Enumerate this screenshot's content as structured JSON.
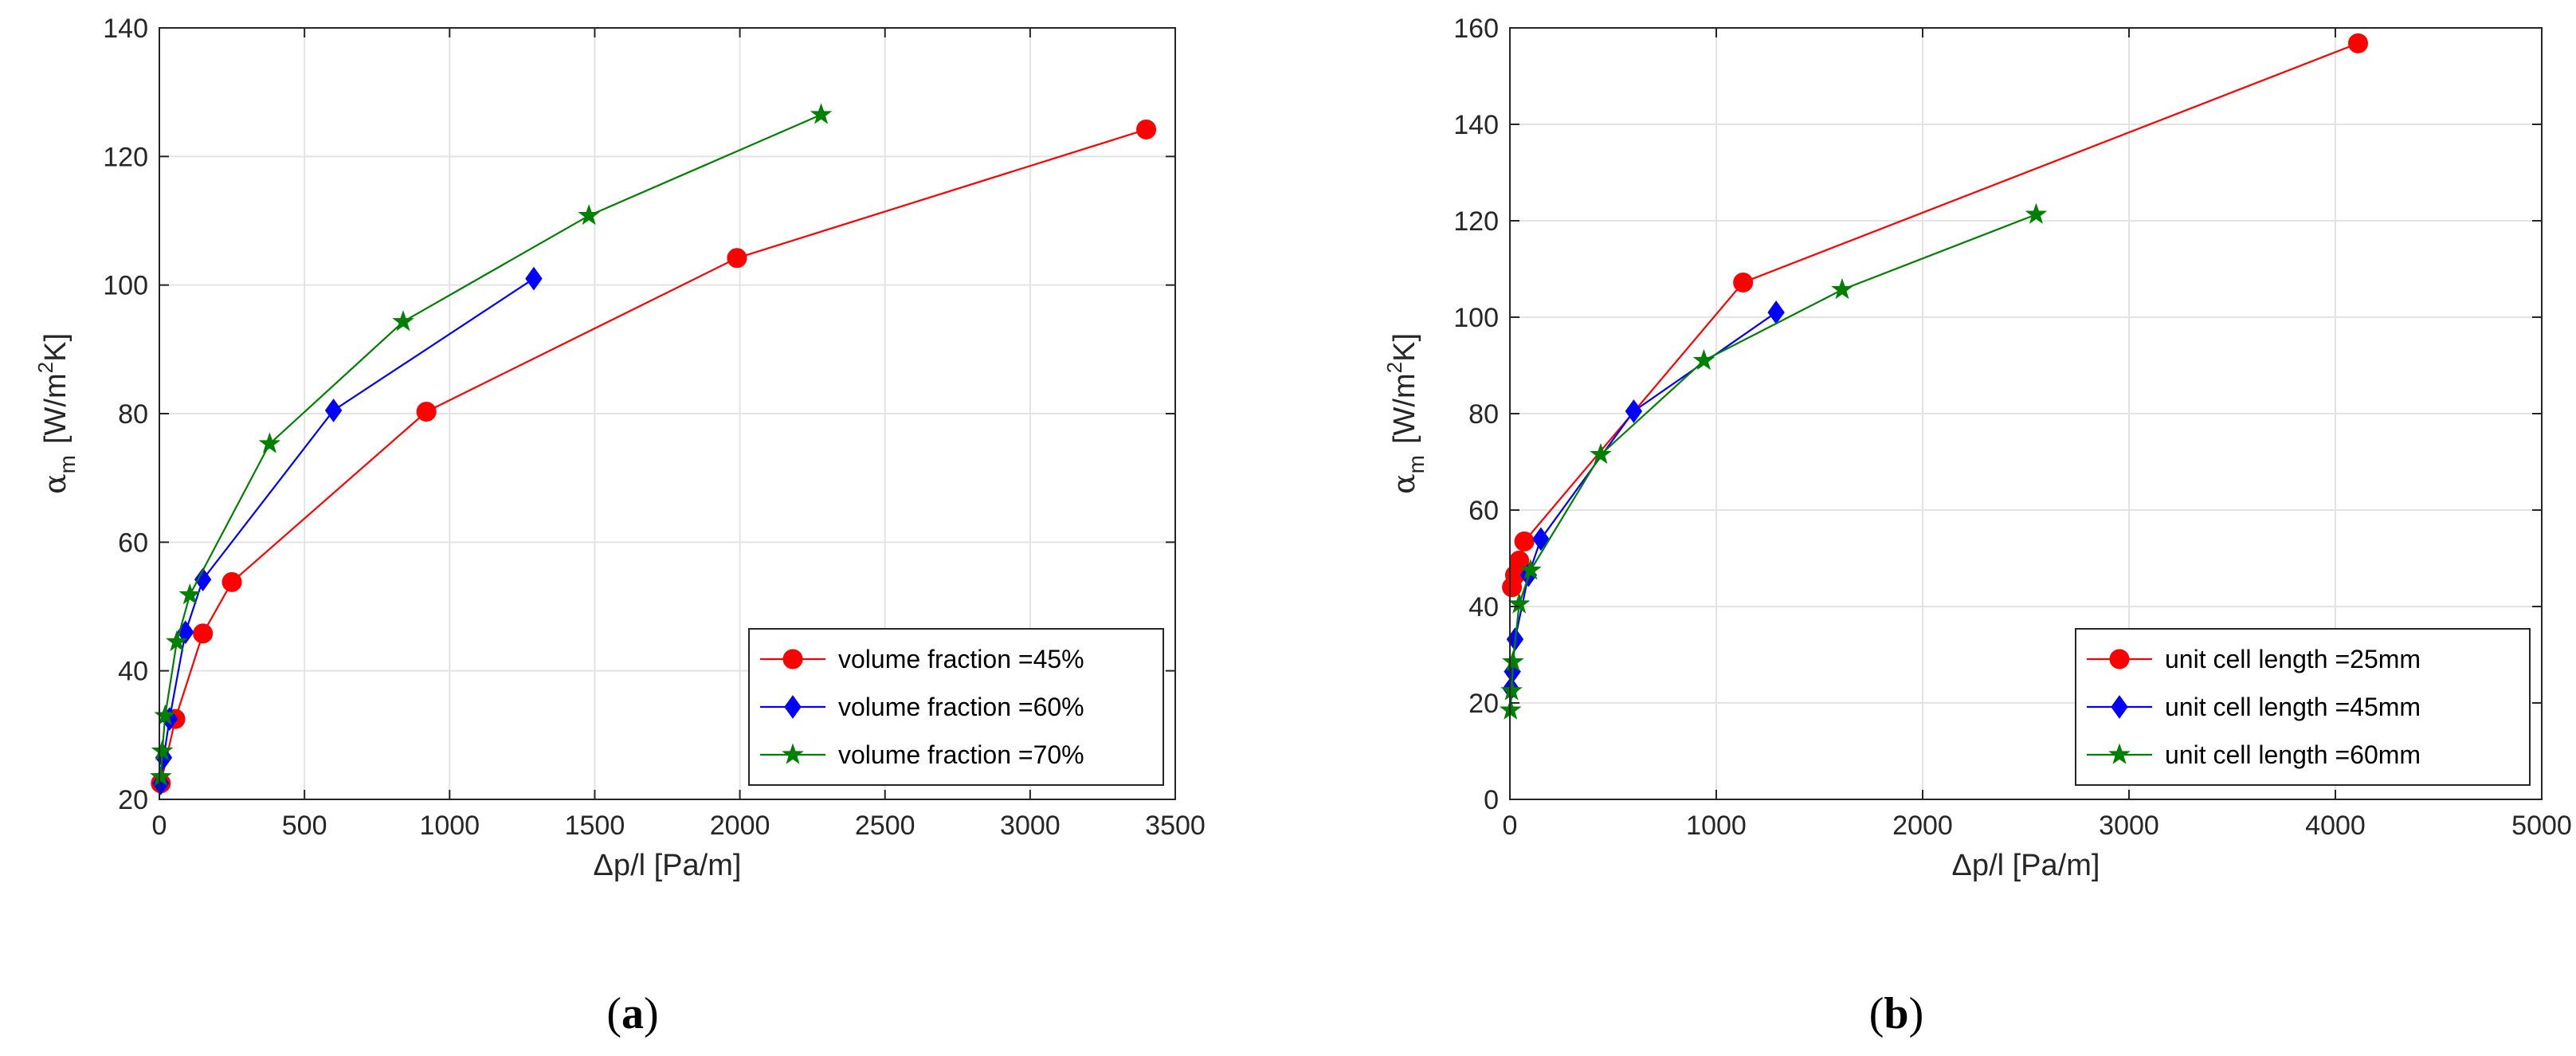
{
  "colors": {
    "red": "#ff0000",
    "blue": "#0000ff",
    "green": "#008000"
  },
  "chart_data": [
    {
      "type": "line",
      "panel_label": "(a)",
      "panel_letter": "a",
      "xlabel": "Δp/l [Pa/m]",
      "ylabel": "α",
      "ylabel_sub": "m",
      "ylabel_units": "[W/m",
      "ylabel_sup": "2",
      "ylabel_end": "K]",
      "xlim": [
        0,
        3500
      ],
      "ylim": [
        20,
        140
      ],
      "xticks": [
        0,
        500,
        1000,
        1500,
        2000,
        2500,
        3000,
        3500
      ],
      "yticks": [
        20,
        40,
        60,
        80,
        100,
        120,
        140
      ],
      "grid": true,
      "legend_position": "bottom-right",
      "series": [
        {
          "name": "volume fraction =45%",
          "color": "#ff0000",
          "marker": "circle",
          "x": [
            5,
            55,
            150,
            250,
            920,
            1990,
            3400
          ],
          "y": [
            22.5,
            32.5,
            45.8,
            53.8,
            80.3,
            104.2,
            124.2
          ]
        },
        {
          "name": "volume fraction =60%",
          "color": "#0000ff",
          "marker": "diamond",
          "x": [
            5,
            15,
            35,
            90,
            150,
            600,
            1290
          ],
          "y": [
            22.5,
            26.5,
            32.5,
            46,
            54.2,
            80.5,
            101
          ]
        },
        {
          "name": "volume fraction =70%",
          "color": "#008000",
          "marker": "star",
          "x": [
            5,
            10,
            20,
            60,
            105,
            380,
            840,
            1480,
            2280
          ],
          "y": [
            23.5,
            27.5,
            33,
            44.5,
            51.8,
            75.3,
            94.3,
            110.8,
            126.5
          ]
        }
      ]
    },
    {
      "type": "line",
      "panel_label": "(b)",
      "panel_letter": "b",
      "xlabel": "Δp/l [Pa/m]",
      "ylabel": "α",
      "ylabel_sub": "m",
      "ylabel_units": "[W/m",
      "ylabel_sup": "2",
      "ylabel_end": "K]",
      "xlim": [
        0,
        5000
      ],
      "ylim": [
        0,
        160
      ],
      "xticks": [
        0,
        1000,
        2000,
        3000,
        4000,
        5000
      ],
      "yticks": [
        0,
        20,
        40,
        60,
        80,
        100,
        120,
        140,
        160
      ],
      "grid": true,
      "legend_position": "bottom-right",
      "series": [
        {
          "name": "unit cell length =25mm",
          "color": "#ff0000",
          "marker": "circle",
          "x": [
            10,
            25,
            45,
            70,
            1130,
            4110
          ],
          "y": [
            44,
            46.5,
            49.5,
            53.5,
            107.2,
            156.8
          ]
        },
        {
          "name": "unit cell length =45mm",
          "color": "#0000ff",
          "marker": "diamond",
          "x": [
            5,
            12,
            25,
            90,
            150,
            600,
            1290
          ],
          "y": [
            23,
            26.5,
            33.2,
            46.5,
            54,
            80.5,
            101
          ]
        },
        {
          "name": "unit cell length =60mm",
          "color": "#008000",
          "marker": "star",
          "x": [
            3,
            8,
            15,
            45,
            100,
            440,
            940,
            1610,
            2550
          ],
          "y": [
            18.5,
            22.5,
            28.5,
            40.5,
            47.5,
            71.5,
            91,
            105.7,
            121.3
          ]
        }
      ]
    }
  ]
}
